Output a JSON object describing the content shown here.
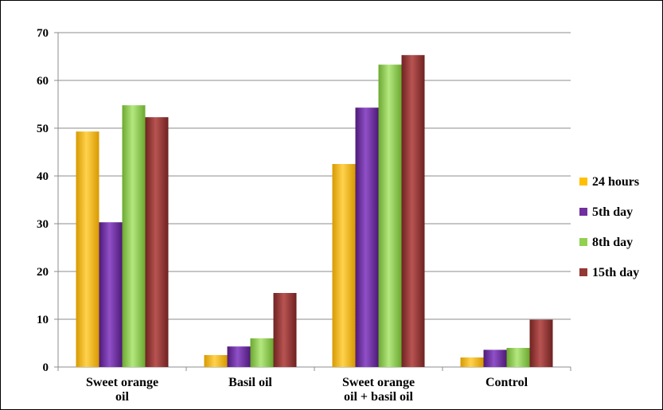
{
  "chart_data": {
    "type": "bar",
    "categories": [
      [
        "Sweet orange",
        "oil"
      ],
      [
        "Basil oil"
      ],
      [
        "Sweet orange",
        "oil + basil oil"
      ],
      [
        "Control"
      ]
    ],
    "series": [
      {
        "name": "24 hours",
        "color": "#FFC000",
        "values": [
          49.3,
          2.5,
          42.5,
          2.0
        ]
      },
      {
        "name": "5th day",
        "color": "#7030A0",
        "values": [
          30.3,
          4.3,
          54.3,
          3.6
        ]
      },
      {
        "name": "8th day",
        "color": "#92D050",
        "values": [
          54.8,
          6.0,
          63.3,
          4.0
        ]
      },
      {
        "name": "15th day",
        "color": "#953735",
        "values": [
          52.3,
          15.5,
          65.3,
          9.9
        ]
      }
    ],
    "ylim": [
      0,
      70
    ],
    "yticks": [
      0,
      10,
      20,
      30,
      40,
      50,
      60,
      70
    ],
    "grid": true,
    "legend": "right"
  }
}
